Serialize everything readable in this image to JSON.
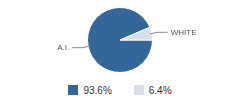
{
  "chart_data": {
    "type": "pie",
    "categories": [
      "A.I.",
      "WHITE"
    ],
    "values": [
      93.6,
      6.4
    ],
    "value_labels": [
      "93.6%",
      "6.4%"
    ],
    "colors": [
      "#336699",
      "#d6dee8"
    ],
    "legend": "bottom"
  }
}
